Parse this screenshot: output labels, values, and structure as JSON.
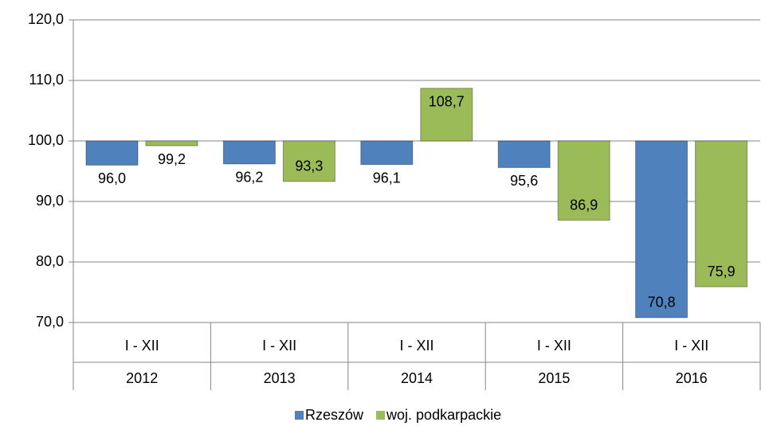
{
  "chart_data": {
    "type": "bar",
    "baseline": 100,
    "categories": [
      "2012",
      "2013",
      "2014",
      "2015",
      "2016"
    ],
    "period_labels": [
      "I - XII",
      "I - XII",
      "I - XII",
      "I - XII",
      "I - XII"
    ],
    "series": [
      {
        "name": "Rzeszów",
        "color": "#4f81bd",
        "values": [
          96.0,
          96.2,
          96.1,
          95.6,
          70.8
        ],
        "value_labels": [
          "96,0",
          "96,2",
          "96,1",
          "95,6",
          "70,8"
        ]
      },
      {
        "name": "woj. podkarpackie",
        "color": "#9bbb59",
        "values": [
          99.2,
          93.3,
          108.7,
          86.9,
          75.9
        ],
        "value_labels": [
          "99,2",
          "93,3",
          "108,7",
          "86,9",
          "75,9"
        ]
      }
    ],
    "ylim": [
      70,
      120
    ],
    "yticks": [
      {
        "value": 70,
        "label": "70,0"
      },
      {
        "value": 80,
        "label": "80,0"
      },
      {
        "value": 90,
        "label": "90,0"
      },
      {
        "value": 100,
        "label": "100,0"
      },
      {
        "value": 110,
        "label": "110,0"
      },
      {
        "value": 120,
        "label": "120,0"
      }
    ],
    "grid": true,
    "legend": "bottom"
  }
}
